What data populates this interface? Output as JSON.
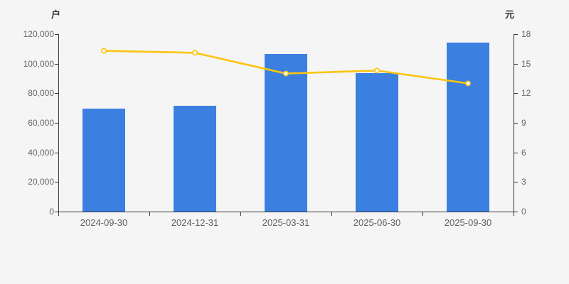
{
  "colors": {
    "background": "#F5F5F6",
    "axis": "#333333",
    "tick_text": "#666666",
    "bar": "#3B7FE0",
    "line": "#FBC40F",
    "marker_fill": "#FFFFFF"
  },
  "chart_data": {
    "type": "bar",
    "title": "",
    "categories": [
      "2024-09-30",
      "2024-12-31",
      "2025-03-31",
      "2025-06-30",
      "2025-09-30"
    ],
    "series": [
      {
        "name": "bar-series",
        "type": "bar",
        "axis": "left",
        "values": [
          69600,
          71500,
          106800,
          93700,
          114200
        ]
      },
      {
        "name": "line-series",
        "type": "line",
        "axis": "right",
        "values": [
          16.3,
          16.1,
          14.0,
          14.3,
          13.0
        ]
      }
    ],
    "left_axis": {
      "unit": "户",
      "min": 0,
      "max": 120000,
      "tick_labels": [
        "0",
        "20,000",
        "40,000",
        "60,000",
        "80,000",
        "100,000",
        "120,000"
      ]
    },
    "right_axis": {
      "unit": "元",
      "min": 0,
      "max": 18,
      "tick_labels": [
        "0",
        "3",
        "6",
        "9",
        "12",
        "15",
        "18"
      ]
    },
    "legend": "none",
    "grid": "off"
  }
}
